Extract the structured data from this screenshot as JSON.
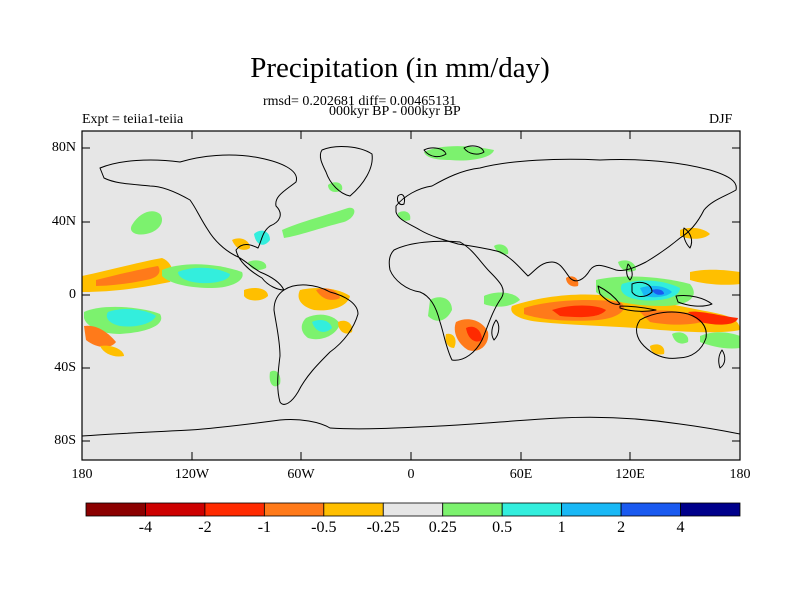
{
  "title": "Precipitation (in mm/day)",
  "stats_line": "rmsd= 0.202681 diff= 0.00465131",
  "period_line": "000kyr BP - 000kyr BP",
  "experiment_label": "Expt = teiia1-teiia",
  "season_label": "DJF",
  "lat_labels": [
    "80N",
    "40N",
    "0",
    "40S",
    "80S"
  ],
  "lon_labels": [
    "180",
    "120W",
    "60W",
    "0",
    "60E",
    "120E",
    "180"
  ],
  "colorbar": {
    "colors": [
      "#8b0000",
      "#cd0000",
      "#ff2a00",
      "#ff7a1a",
      "#ffbf00",
      "#e6e6e6",
      "#7cf26e",
      "#33eedd",
      "#19b8f5",
      "#1a5af0",
      "#00008b"
    ],
    "labels": [
      "-4",
      "-2",
      "-1",
      "-0.5",
      "-0.25",
      "0.25",
      "0.5",
      "1",
      "2",
      "4"
    ]
  },
  "colors": {
    "ocean_land_background": "#e6e6e6",
    "coastline": "#000000"
  }
}
